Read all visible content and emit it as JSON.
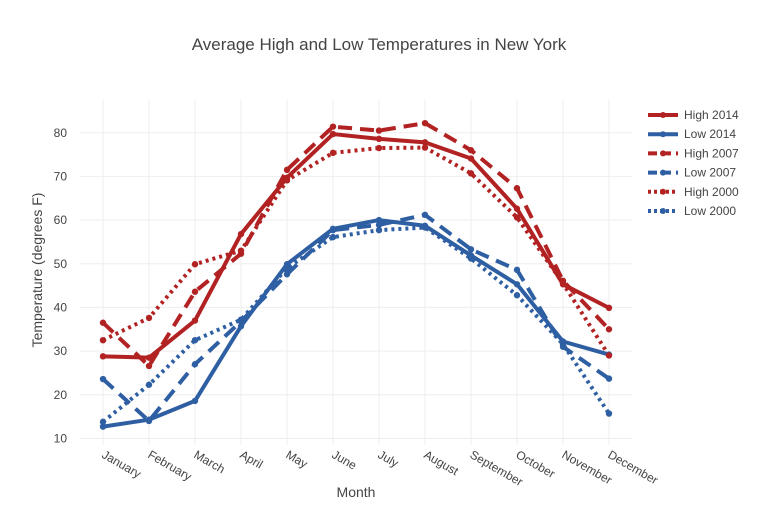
{
  "chart_data": {
    "type": "line",
    "title": "Average High and Low Temperatures in New York",
    "xlabel": "Month",
    "ylabel": "Temperature (degrees F)",
    "categories": [
      "January",
      "February",
      "March",
      "April",
      "May",
      "June",
      "July",
      "August",
      "September",
      "October",
      "November",
      "December"
    ],
    "ylim": [
      8.5,
      87.5
    ],
    "yticks": [
      10,
      20,
      30,
      40,
      50,
      60,
      70,
      80
    ],
    "grid": true,
    "legend_position": "top-right",
    "series": [
      {
        "name": "High 2014",
        "color": "#b22222",
        "dash": "solid",
        "values": [
          28.8,
          28.5,
          37.0,
          56.8,
          69.7,
          79.7,
          78.6,
          77.8,
          74.1,
          62.6,
          45.3,
          39.9
        ]
      },
      {
        "name": "Low 2014",
        "color": "#2f5fa3",
        "dash": "solid",
        "values": [
          12.7,
          14.3,
          18.6,
          35.7,
          49.9,
          58.0,
          60.0,
          58.7,
          51.9,
          45.3,
          32.2,
          29.2
        ]
      },
      {
        "name": "High 2007",
        "color": "#b22222",
        "dash": "dash",
        "values": [
          36.5,
          26.6,
          43.6,
          52.3,
          71.5,
          81.4,
          80.5,
          82.2,
          76.0,
          67.3,
          46.1,
          35.0
        ]
      },
      {
        "name": "Low 2007",
        "color": "#2f5fa3",
        "dash": "dash",
        "values": [
          23.6,
          14.0,
          27.0,
          36.8,
          47.6,
          57.7,
          58.9,
          61.2,
          53.3,
          48.6,
          31.0,
          23.7
        ]
      },
      {
        "name": "High 2000",
        "color": "#b22222",
        "dash": "dot",
        "values": [
          32.5,
          37.6,
          49.9,
          53.0,
          69.1,
          75.4,
          76.5,
          76.6,
          70.7,
          60.6,
          45.5,
          29.0
        ]
      },
      {
        "name": "Low 2000",
        "color": "#2f5fa3",
        "dash": "dot",
        "values": [
          13.8,
          22.3,
          32.5,
          37.2,
          49.0,
          56.1,
          57.7,
          58.3,
          51.2,
          42.8,
          31.6,
          15.7
        ]
      }
    ]
  }
}
